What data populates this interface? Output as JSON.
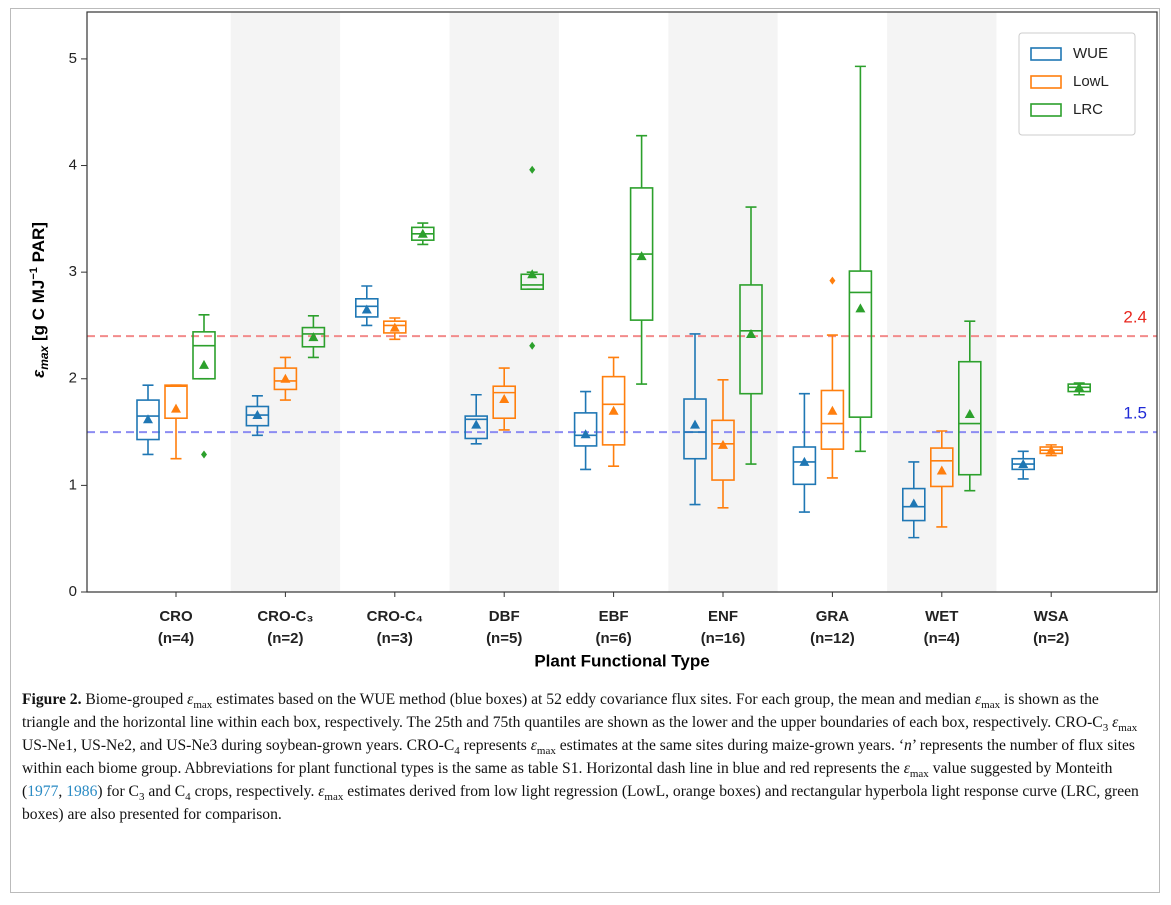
{
  "chart_data": {
    "type": "box",
    "y_label": [
      "ε",
      "max",
      " [g C MJ",
      "−1",
      " PAR]"
    ],
    "x_label": "Plant Functional Type",
    "categories": [
      "CRO",
      "CRO-C₃",
      "CRO-C₄",
      "DBF",
      "EBF",
      "ENF",
      "GRA",
      "WET",
      "WSA"
    ],
    "category_counts": [
      "(n=4)",
      "(n=2)",
      "(n=3)",
      "(n=5)",
      "(n=6)",
      "(n=16)",
      "(n=12)",
      "(n=4)",
      "(n=2)"
    ],
    "ylim": [
      0,
      5.44
    ],
    "yticks": [
      0,
      1,
      2,
      3,
      4,
      5
    ],
    "legend": "upper right",
    "hlines": [
      {
        "value": 2.4,
        "color": "#f28b8b"
      },
      {
        "value": 1.5,
        "color": "#8c8cf2"
      }
    ],
    "hline_label_colors": [
      "#e8261d",
      "#1f2ad6"
    ],
    "series": [
      {
        "name": "WUE",
        "color": "#1f77b4",
        "boxes": [
          {
            "whislo": 1.29,
            "q1": 1.43,
            "med": 1.65,
            "q3": 1.8,
            "whishi": 1.94,
            "mean": 1.62,
            "fliers": []
          },
          {
            "whislo": 1.47,
            "q1": 1.56,
            "med": 1.66,
            "q3": 1.74,
            "whishi": 1.84,
            "mean": 1.66,
            "fliers": []
          },
          {
            "whislo": 2.5,
            "q1": 2.58,
            "med": 2.68,
            "q3": 2.75,
            "whishi": 2.87,
            "mean": 2.65,
            "fliers": []
          },
          {
            "whislo": 1.39,
            "q1": 1.44,
            "med": 1.62,
            "q3": 1.65,
            "whishi": 1.85,
            "mean": 1.57,
            "fliers": []
          },
          {
            "whislo": 1.15,
            "q1": 1.37,
            "med": 1.47,
            "q3": 1.68,
            "whishi": 1.88,
            "mean": 1.48,
            "fliers": []
          },
          {
            "whislo": 0.82,
            "q1": 1.25,
            "med": 1.5,
            "q3": 1.81,
            "whishi": 2.42,
            "mean": 1.57,
            "fliers": []
          },
          {
            "whislo": 0.75,
            "q1": 1.01,
            "med": 1.22,
            "q3": 1.36,
            "whishi": 1.86,
            "mean": 1.22,
            "fliers": []
          },
          {
            "whislo": 0.51,
            "q1": 0.67,
            "med": 0.8,
            "q3": 0.97,
            "whishi": 1.22,
            "mean": 0.83,
            "fliers": []
          },
          {
            "whislo": 1.06,
            "q1": 1.15,
            "med": 1.2,
            "q3": 1.25,
            "whishi": 1.32,
            "mean": 1.2,
            "fliers": []
          }
        ]
      },
      {
        "name": "LowL",
        "color": "#ff7f0e",
        "boxes": [
          {
            "whislo": 1.25,
            "q1": 1.63,
            "med": 1.93,
            "q3": 1.94,
            "whishi": 1.94,
            "mean": 1.72,
            "fliers": []
          },
          {
            "whislo": 1.8,
            "q1": 1.9,
            "med": 1.98,
            "q3": 2.1,
            "whishi": 2.2,
            "mean": 2.0,
            "fliers": []
          },
          {
            "whislo": 2.37,
            "q1": 2.43,
            "med": 2.5,
            "q3": 2.54,
            "whishi": 2.57,
            "mean": 2.48,
            "fliers": []
          },
          {
            "whislo": 1.52,
            "q1": 1.63,
            "med": 1.87,
            "q3": 1.93,
            "whishi": 2.1,
            "mean": 1.81,
            "fliers": []
          },
          {
            "whislo": 1.18,
            "q1": 1.38,
            "med": 1.76,
            "q3": 2.02,
            "whishi": 2.2,
            "mean": 1.7,
            "fliers": []
          },
          {
            "whislo": 0.79,
            "q1": 1.05,
            "med": 1.39,
            "q3": 1.61,
            "whishi": 1.99,
            "mean": 1.38,
            "fliers": []
          },
          {
            "whislo": 1.07,
            "q1": 1.34,
            "med": 1.58,
            "q3": 1.89,
            "whishi": 2.41,
            "mean": 1.7,
            "fliers": [
              2.92
            ]
          },
          {
            "whislo": 0.61,
            "q1": 0.99,
            "med": 1.23,
            "q3": 1.35,
            "whishi": 1.51,
            "mean": 1.14,
            "fliers": []
          },
          {
            "whislo": 1.28,
            "q1": 1.3,
            "med": 1.33,
            "q3": 1.36,
            "whishi": 1.38,
            "mean": 1.33,
            "fliers": []
          }
        ]
      },
      {
        "name": "LRC",
        "color": "#2ca02c",
        "boxes": [
          {
            "whislo": 2.0,
            "q1": 2.0,
            "med": 2.31,
            "q3": 2.44,
            "whishi": 2.6,
            "mean": 2.13,
            "fliers": [
              1.29
            ]
          },
          {
            "whislo": 2.2,
            "q1": 2.3,
            "med": 2.42,
            "q3": 2.48,
            "whishi": 2.59,
            "mean": 2.39,
            "fliers": []
          },
          {
            "whislo": 3.26,
            "q1": 3.3,
            "med": 3.36,
            "q3": 3.42,
            "whishi": 3.46,
            "mean": 3.36,
            "fliers": []
          },
          {
            "whislo": 2.84,
            "q1": 2.84,
            "med": 2.88,
            "q3": 2.98,
            "whishi": 3.0,
            "mean": 2.98,
            "fliers": [
              3.96,
              2.31
            ]
          },
          {
            "whislo": 1.95,
            "q1": 2.55,
            "med": 3.17,
            "q3": 3.79,
            "whishi": 4.28,
            "mean": 3.15,
            "fliers": []
          },
          {
            "whislo": 1.2,
            "q1": 1.86,
            "med": 2.45,
            "q3": 2.88,
            "whishi": 3.61,
            "mean": 2.42,
            "fliers": []
          },
          {
            "whislo": 1.32,
            "q1": 1.64,
            "med": 2.81,
            "q3": 3.01,
            "whishi": 4.93,
            "mean": 2.66,
            "fliers": []
          },
          {
            "whislo": 0.95,
            "q1": 1.1,
            "med": 1.58,
            "q3": 2.16,
            "whishi": 2.54,
            "mean": 1.67,
            "fliers": []
          },
          {
            "whislo": 1.85,
            "q1": 1.88,
            "med": 1.92,
            "q3": 1.95,
            "whishi": 1.96,
            "mean": 1.92,
            "fliers": []
          }
        ]
      }
    ]
  },
  "caption": [
    "Figure 2.",
    " Biome-grouped ",
    "ε",
    "max",
    " estimates based on the WUE method (blue boxes) at 52 eddy covariance flux sites. For each group, the mean and median ",
    "ε",
    "max",
    " is shown as the triangle and the horizontal line within each box, respectively. The 25th and 75th quantiles are shown as the lower and the upper boundaries of each box, respectively. CRO-C",
    "3",
    " ",
    "ε",
    "max",
    " US-Ne1, US-Ne2, and US-Ne3 during soybean-grown years. CRO-C",
    "4",
    " represents ",
    "ε",
    "max",
    " estimates at the same sites during maize-grown years. ‘",
    "n",
    "’ represents the number of flux sites within each biome group. Abbreviations for plant functional types is the same as table S1. Horizontal dash line in blue and red represents the ",
    "ε",
    "max",
    " value suggested by Monteith (",
    "1977",
    ", ",
    "1986",
    ") for C",
    "3",
    " and C",
    "4",
    " crops, respectively. ",
    "ε",
    "max",
    " estimates derived from low light regression (LowL, orange boxes) and rectangular hyperbola light response curve (LRC, green boxes) are also presented for comparison."
  ]
}
